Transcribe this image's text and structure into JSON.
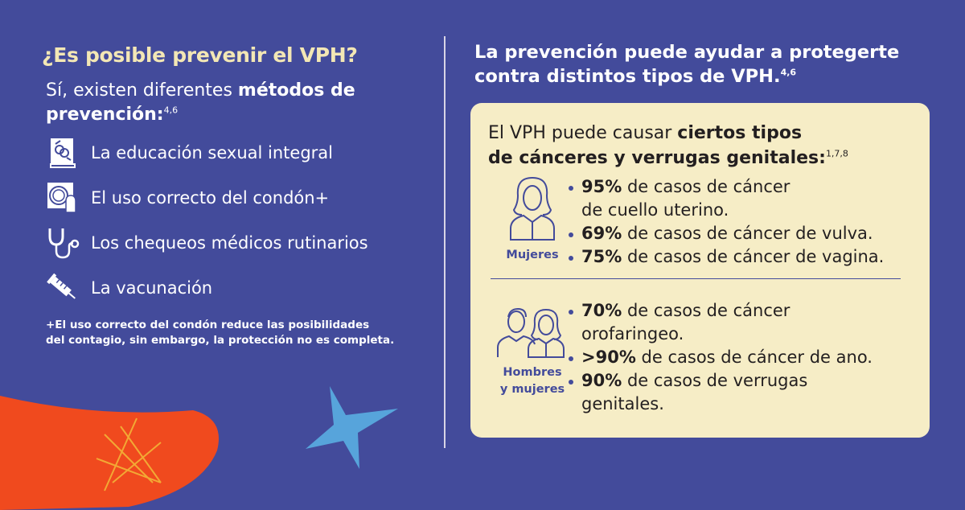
{
  "left": {
    "question": "¿Es posible prevenir el VPH?",
    "intro_plain": "Sí, existen diferentes ",
    "intro_bold": "métodos de prevención:",
    "intro_refs": "4,6",
    "methods": [
      {
        "icon": "sex-education-book-icon",
        "label": "La educación sexual integral"
      },
      {
        "icon": "condom-icon",
        "label": "El uso correcto del condón+"
      },
      {
        "icon": "stethoscope-icon",
        "label": "Los chequeos médicos rutinarios"
      },
      {
        "icon": "syringe-icon",
        "label": "La vacunación"
      }
    ],
    "footnote_line1": "+El uso correcto del condón reduce las posibilidades",
    "footnote_line2": "del contagio, sin embargo, la protección no es completa."
  },
  "right": {
    "heading_line1": "La prevención puede ayudar a protegerte",
    "heading_line2": "contra distintos tipos de VPH.",
    "heading_refs": "4,6",
    "card": {
      "title_plain": "El VPH puede causar ",
      "title_bold1": "ciertos tipos",
      "title_bold2": "de cánceres y verrugas genitales:",
      "title_refs": "1,7,8",
      "women": {
        "label": "Mujeres",
        "items": [
          {
            "pct": "95%",
            "text": " de casos de cáncer",
            "cont": "de cuello uterino."
          },
          {
            "pct": "69%",
            "text": " de casos de cáncer de vulva."
          },
          {
            "pct": "75%",
            "text": " de casos de cáncer de vagina."
          }
        ]
      },
      "both": {
        "label_line1": "Hombres",
        "label_line2": "y mujeres",
        "items": [
          {
            "pct": "70%",
            "text": " de casos de cáncer",
            "cont": "orofaringeo."
          },
          {
            "pct": ">90%",
            "text": " de casos de cáncer de ano."
          },
          {
            "pct": "90%",
            "text": " de casos de verrugas",
            "cont": "genitales."
          }
        ]
      }
    }
  },
  "colors": {
    "background": "#434b9b",
    "accent_yellow": "#f3e7b5",
    "card": "#f6edc6",
    "orange": "#f04a1e",
    "light_blue": "#5ab4e6"
  }
}
